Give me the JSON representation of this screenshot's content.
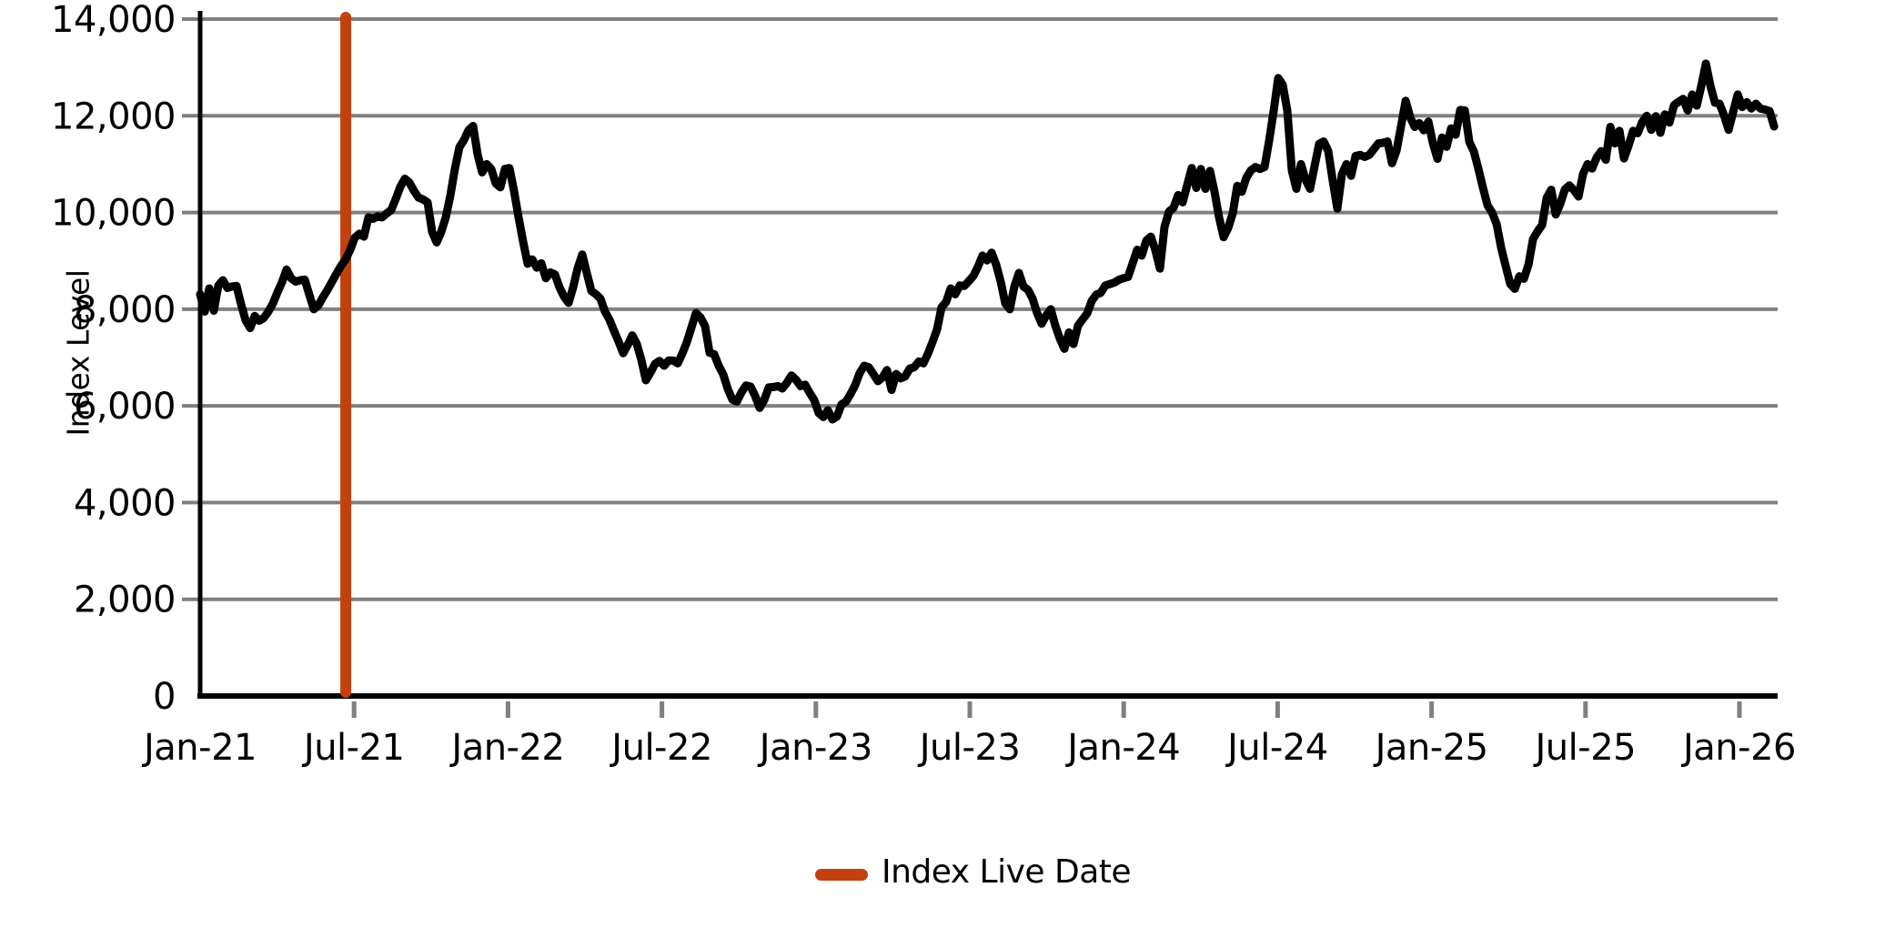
{
  "chart_data": {
    "type": "line",
    "title": "",
    "xlabel": "",
    "ylabel": "Index Level",
    "ylim": [
      0,
      14000
    ],
    "xlim_years": [
      2021.0,
      2026.124
    ],
    "grid": "horizontal",
    "legend_position": "bottom-center",
    "y_ticks": {
      "values": [
        0,
        2000,
        4000,
        6000,
        8000,
        10000,
        12000,
        14000
      ],
      "labels": [
        "0",
        "2,000",
        "4,000",
        "6,000",
        "8,000",
        "10,000",
        "12,000",
        "14,000"
      ]
    },
    "x_ticks": {
      "values": [
        2021.0,
        2021.5,
        2022.0,
        2022.5,
        2023.0,
        2023.5,
        2024.0,
        2024.5,
        2025.0,
        2025.5,
        2026.0
      ],
      "labels": [
        "Jan-21",
        "Jul-21",
        "Jan-22",
        "Jul-22",
        "Jan-23",
        "Jul-23",
        "Jan-24",
        "Jul-24",
        "Jan-25",
        "Jul-25",
        "Jan-26"
      ]
    },
    "vline": {
      "t_years": 2021.473,
      "label": "Index Live Date",
      "color": "#c3410f"
    },
    "legend": {
      "entries": [
        {
          "label": "Index Live Date",
          "color": "#c3410f",
          "marker": "line"
        }
      ]
    },
    "colors": {
      "series_line": "#000000",
      "grid": "#808080",
      "tick": "#7f7f7f",
      "axis": "#000000",
      "text": "#000000",
      "background": "#ffffff"
    },
    "series": [
      {
        "name": "Index Level",
        "color": "#000000",
        "t_start_years": 2021.0,
        "t_step_years": 0.014776,
        "values": [
          8310,
          7950,
          8430,
          7970,
          8490,
          8600,
          8440,
          8470,
          8480,
          8100,
          7770,
          7610,
          7860,
          7760,
          7820,
          7950,
          8120,
          8350,
          8560,
          8820,
          8640,
          8570,
          8600,
          8610,
          8300,
          8000,
          8080,
          8250,
          8400,
          8570,
          8740,
          8900,
          9030,
          9230,
          9480,
          9560,
          9500,
          9900,
          9870,
          9920,
          9900,
          9980,
          10050,
          10280,
          10530,
          10700,
          10620,
          10450,
          10310,
          10270,
          10210,
          9600,
          9380,
          9600,
          9900,
          10350,
          10900,
          11350,
          11500,
          11700,
          11790,
          11200,
          10830,
          11000,
          10900,
          10600,
          10520,
          10900,
          10920,
          10450,
          9900,
          9400,
          8940,
          9030,
          8860,
          8950,
          8640,
          8760,
          8720,
          8450,
          8260,
          8130,
          8450,
          8850,
          9130,
          8750,
          8380,
          8310,
          8220,
          7950,
          7780,
          7550,
          7330,
          7090,
          7260,
          7460,
          7280,
          6950,
          6530,
          6690,
          6870,
          6930,
          6830,
          6940,
          6940,
          6880,
          7080,
          7320,
          7620,
          7920,
          7830,
          7650,
          7100,
          7070,
          6830,
          6650,
          6350,
          6130,
          6090,
          6280,
          6420,
          6400,
          6210,
          5960,
          6120,
          6380,
          6390,
          6410,
          6360,
          6480,
          6630,
          6540,
          6410,
          6440,
          6270,
          6120,
          5850,
          5770,
          5910,
          5720,
          5780,
          6030,
          6090,
          6250,
          6430,
          6680,
          6830,
          6800,
          6660,
          6510,
          6590,
          6740,
          6330,
          6660,
          6570,
          6610,
          6770,
          6800,
          6920,
          6880,
          7080,
          7320,
          7580,
          8040,
          8150,
          8430,
          8310,
          8490,
          8480,
          8580,
          8690,
          8880,
          9110,
          9010,
          9170,
          8920,
          8570,
          8120,
          8000,
          8470,
          8750,
          8470,
          8400,
          8220,
          7920,
          7700,
          7870,
          8000,
          7660,
          7390,
          7180,
          7520,
          7280,
          7660,
          7790,
          7910,
          8170,
          8300,
          8340,
          8490,
          8520,
          8550,
          8610,
          8640,
          8670,
          8950,
          9230,
          9110,
          9420,
          9500,
          9220,
          8840,
          9700,
          10020,
          10100,
          10360,
          10210,
          10570,
          10920,
          10510,
          10900,
          10490,
          10860,
          10430,
          9900,
          9490,
          9680,
          9980,
          10550,
          10430,
          10720,
          10870,
          10940,
          10900,
          10940,
          11480,
          12100,
          12780,
          12640,
          12110,
          10870,
          10490,
          11000,
          10680,
          10490,
          10960,
          11420,
          11470,
          11270,
          10650,
          10080,
          10790,
          11000,
          10760,
          11170,
          11190,
          11150,
          11190,
          11310,
          11430,
          11440,
          11470,
          11020,
          11280,
          11790,
          12310,
          11970,
          11770,
          11850,
          11700,
          11880,
          11430,
          11110,
          11550,
          11360,
          11740,
          11610,
          12120,
          12110,
          11460,
          11260,
          10900,
          10510,
          10150,
          10000,
          9760,
          9270,
          8890,
          8520,
          8420,
          8680,
          8630,
          8920,
          9450,
          9610,
          9740,
          10300,
          10470,
          9960,
          10180,
          10480,
          10560,
          10460,
          10330,
          10800,
          11000,
          10910,
          11140,
          11270,
          11090,
          11770,
          11430,
          11690,
          11120,
          11380,
          11690,
          11640,
          11870,
          12000,
          11710,
          11990,
          11650,
          12030,
          11860,
          12220,
          12290,
          12350,
          12110,
          12440,
          12210,
          12620,
          13080,
          12620,
          12270,
          12250,
          12010,
          11710,
          12080,
          12440,
          12180,
          12280,
          12150,
          12250,
          12150,
          12130,
          12100,
          11780
        ]
      }
    ]
  }
}
